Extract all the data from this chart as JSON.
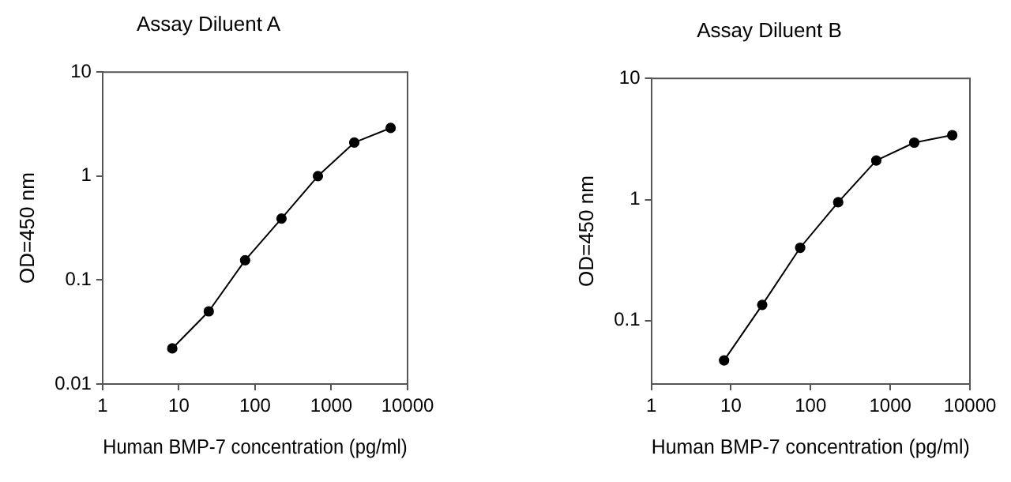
{
  "chart_data": [
    {
      "type": "line",
      "title": "Assay Diluent A",
      "xlabel": "Human BMP-7 concentration (pg/ml)",
      "ylabel": "OD=450 nm",
      "x": [
        8.2,
        24.7,
        74,
        222,
        667,
        2000,
        6000
      ],
      "series": [
        {
          "color": "#000000",
          "values": [
            0.022,
            0.05,
            0.155,
            0.39,
            1.0,
            2.1,
            2.9
          ]
        }
      ],
      "xlim": [
        1,
        10000
      ],
      "ylim": [
        0.01,
        10
      ],
      "xticks": [
        1,
        10,
        100,
        1000,
        10000
      ],
      "yticks": [
        0.01,
        0.1,
        1,
        10
      ],
      "log": "xy",
      "grid": false,
      "legend": false,
      "marker": "circle",
      "line_style": "solid"
    },
    {
      "type": "line",
      "title": "Assay Diluent B",
      "xlabel": "Human BMP-7 concentration (pg/ml)",
      "ylabel": "OD=450 nm",
      "x": [
        8.2,
        24.7,
        74,
        222,
        667,
        2000,
        6000
      ],
      "series": [
        {
          "color": "#000000",
          "values": [
            0.047,
            0.135,
            0.4,
            0.95,
            2.1,
            2.95,
            3.4
          ]
        }
      ],
      "xlim": [
        1,
        10000
      ],
      "ylim": [
        0.03,
        10
      ],
      "xticks": [
        1,
        10,
        100,
        1000,
        10000
      ],
      "yticks": [
        0.1,
        1,
        10
      ],
      "log": "xy",
      "grid": false,
      "legend": false,
      "marker": "circle",
      "line_style": "solid"
    }
  ]
}
